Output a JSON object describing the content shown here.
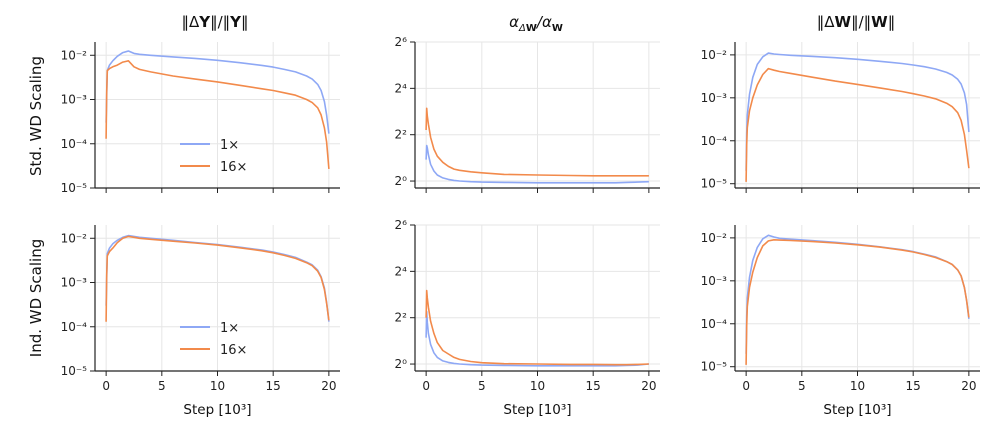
{
  "colors": {
    "blue": "#8EA8F5",
    "orange": "#F28A4B",
    "grid": "#e6e6e6",
    "axis": "#222222"
  },
  "chart_data": [
    {
      "type": "line",
      "row": "Std. WD Scaling",
      "title": "||ΔY||/||Y||",
      "yscale": "log10",
      "ylim_exp": [
        -5,
        -1.7
      ],
      "yticks_exp": [
        -5,
        -4,
        -3,
        -2
      ],
      "xlim": [
        -1,
        21
      ],
      "xticks": [
        0,
        5,
        10,
        15,
        20
      ],
      "xlabel": "",
      "legend": [
        "1×",
        "16×"
      ],
      "legend_loc": "lower-center",
      "x": [
        0,
        0.05,
        0.1,
        0.3,
        0.6,
        1,
        1.5,
        2,
        2.5,
        3,
        4,
        6,
        8,
        10,
        12,
        14,
        15,
        16,
        17,
        18,
        18.5,
        19,
        19.3,
        19.6,
        19.8,
        20
      ],
      "series": [
        {
          "name": "1×",
          "values": [
            0.0003,
            0.0012,
            0.0045,
            0.006,
            0.0075,
            0.0095,
            0.0115,
            0.0125,
            0.011,
            0.0105,
            0.01,
            0.0092,
            0.0085,
            0.0077,
            0.0068,
            0.0059,
            0.0054,
            0.0048,
            0.0042,
            0.0034,
            0.0029,
            0.0022,
            0.0016,
            0.0009,
            0.00045,
            0.00017
          ]
        },
        {
          "name": "16×",
          "values": [
            0.00013,
            0.0015,
            0.0045,
            0.005,
            0.0055,
            0.006,
            0.007,
            0.0075,
            0.0055,
            0.0048,
            0.0042,
            0.0034,
            0.0029,
            0.0025,
            0.0021,
            0.00175,
            0.0016,
            0.00142,
            0.00125,
            0.001,
            0.00085,
            0.00065,
            0.00045,
            0.00023,
            0.00011,
            2.7e-05
          ]
        }
      ]
    },
    {
      "type": "line",
      "row": "Std. WD Scaling",
      "title": "αΔW/αW",
      "yscale": "log2",
      "ylim_exp": [
        -0.3,
        6
      ],
      "yticks_exp": [
        0,
        2,
        4,
        6
      ],
      "xlim": [
        -1,
        21
      ],
      "xticks": [
        0,
        5,
        10,
        15,
        20
      ],
      "xlabel": "",
      "x": [
        0,
        0.05,
        0.1,
        0.2,
        0.4,
        0.7,
        1,
        1.5,
        2,
        2.5,
        3,
        4,
        5,
        7,
        10,
        13,
        15,
        17,
        18,
        19,
        20
      ],
      "series": [
        {
          "name": "1×",
          "values": [
            1.9,
            2.9,
            2.7,
            2.2,
            1.65,
            1.35,
            1.2,
            1.1,
            1.05,
            1.02,
            1.0,
            0.98,
            0.97,
            0.96,
            0.95,
            0.95,
            0.95,
            0.95,
            0.96,
            0.97,
            0.98
          ]
        },
        {
          "name": "16×",
          "values": [
            4.6,
            8.8,
            7.0,
            5.5,
            3.7,
            2.6,
            2.1,
            1.75,
            1.55,
            1.43,
            1.38,
            1.32,
            1.28,
            1.22,
            1.2,
            1.18,
            1.17,
            1.17,
            1.17,
            1.17,
            1.17
          ]
        }
      ]
    },
    {
      "type": "line",
      "row": "Std. WD Scaling",
      "title": "||ΔW||/||W||",
      "yscale": "log10",
      "ylim_exp": [
        -5.1,
        -1.7
      ],
      "yticks_exp": [
        -5,
        -4,
        -3,
        -2
      ],
      "xlim": [
        -1,
        21
      ],
      "xticks": [
        0,
        5,
        10,
        15,
        20
      ],
      "xlabel": "",
      "x": [
        0,
        0.05,
        0.1,
        0.3,
        0.6,
        1,
        1.5,
        2,
        2.5,
        3,
        4,
        6,
        8,
        10,
        12,
        14,
        15,
        16,
        17,
        18,
        18.5,
        19,
        19.3,
        19.6,
        19.8,
        20
      ],
      "series": [
        {
          "name": "1×",
          "values": [
            2e-05,
            0.00015,
            0.0004,
            0.0012,
            0.003,
            0.006,
            0.009,
            0.011,
            0.0105,
            0.0102,
            0.0098,
            0.0092,
            0.0086,
            0.0079,
            0.0071,
            0.0063,
            0.0058,
            0.0053,
            0.0047,
            0.0039,
            0.0034,
            0.0027,
            0.0021,
            0.0013,
            0.0007,
            0.00016
          ]
        },
        {
          "name": "16×",
          "values": [
            1.1e-05,
            8e-05,
            0.0002,
            0.0005,
            0.001,
            0.002,
            0.0035,
            0.0048,
            0.0044,
            0.0041,
            0.0037,
            0.003,
            0.00245,
            0.00205,
            0.0017,
            0.0014,
            0.00125,
            0.0011,
            0.00095,
            0.00075,
            0.00062,
            0.00045,
            0.0003,
            0.00014,
            6e-05,
            2.3e-05
          ]
        }
      ]
    },
    {
      "type": "line",
      "row": "Ind. WD Scaling",
      "title": "",
      "yscale": "log10",
      "ylim_exp": [
        -5,
        -1.7
      ],
      "yticks_exp": [
        -5,
        -4,
        -3,
        -2
      ],
      "xlim": [
        -1,
        21
      ],
      "xticks": [
        0,
        5,
        10,
        15,
        20
      ],
      "xlabel": "Step [10³]",
      "legend": [
        "1×",
        "16×"
      ],
      "legend_loc": "lower-center",
      "x": [
        0,
        0.05,
        0.1,
        0.3,
        0.6,
        1,
        1.5,
        2,
        2.5,
        3,
        4,
        6,
        8,
        10,
        12,
        14,
        15,
        16,
        17,
        18,
        18.5,
        19,
        19.3,
        19.6,
        19.8,
        20
      ],
      "series": [
        {
          "name": "1×",
          "values": [
            0.0003,
            0.0012,
            0.0045,
            0.006,
            0.0075,
            0.009,
            0.0105,
            0.0115,
            0.011,
            0.0105,
            0.01,
            0.009,
            0.008,
            0.0072,
            0.0063,
            0.0054,
            0.0049,
            0.0043,
            0.0037,
            0.0029,
            0.0025,
            0.0019,
            0.00135,
            0.00075,
            0.00036,
            0.00013
          ]
        },
        {
          "name": "16×",
          "values": [
            0.00013,
            0.0015,
            0.004,
            0.005,
            0.006,
            0.008,
            0.01,
            0.011,
            0.0105,
            0.01,
            0.0095,
            0.0086,
            0.0078,
            0.007,
            0.0061,
            0.0052,
            0.0047,
            0.0041,
            0.0035,
            0.0028,
            0.0024,
            0.0018,
            0.0013,
            0.0007,
            0.00034,
            0.00014
          ]
        }
      ]
    },
    {
      "type": "line",
      "row": "Ind. WD Scaling",
      "title": "",
      "yscale": "log2",
      "ylim_exp": [
        -0.3,
        6
      ],
      "yticks_exp": [
        0,
        2,
        4,
        6
      ],
      "xlim": [
        -1,
        21
      ],
      "xticks": [
        0,
        5,
        10,
        15,
        20
      ],
      "xlabel": "Step [10³]",
      "x": [
        0,
        0.05,
        0.1,
        0.2,
        0.4,
        0.7,
        1,
        1.5,
        2,
        2.5,
        3,
        4,
        5,
        7,
        10,
        13,
        15,
        17,
        18,
        19,
        20
      ],
      "series": [
        {
          "name": "1×",
          "values": [
            2.2,
            4.8,
            3.5,
            2.5,
            1.8,
            1.4,
            1.22,
            1.1,
            1.05,
            1.02,
            1.0,
            0.98,
            0.97,
            0.96,
            0.95,
            0.95,
            0.95,
            0.95,
            0.96,
            0.97,
            1.0
          ]
        },
        {
          "name": "16×",
          "values": [
            4.0,
            9.0,
            7.2,
            5.5,
            3.6,
            2.5,
            1.9,
            1.5,
            1.35,
            1.22,
            1.15,
            1.08,
            1.04,
            1.01,
            1.0,
            0.99,
            0.99,
            0.98,
            0.98,
            0.99,
            1.0
          ]
        }
      ]
    },
    {
      "type": "line",
      "row": "Ind. WD Scaling",
      "title": "",
      "yscale": "log10",
      "ylim_exp": [
        -5.1,
        -1.7
      ],
      "yticks_exp": [
        -5,
        -4,
        -3,
        -2
      ],
      "xlim": [
        -1,
        21
      ],
      "xticks": [
        0,
        5,
        10,
        15,
        20
      ],
      "xlabel": "Step [10³]",
      "x": [
        0,
        0.05,
        0.1,
        0.3,
        0.6,
        1,
        1.5,
        2,
        2.5,
        3,
        4,
        6,
        8,
        10,
        12,
        14,
        15,
        16,
        17,
        18,
        18.5,
        19,
        19.3,
        19.6,
        19.8,
        20
      ],
      "series": [
        {
          "name": "1×",
          "values": [
            2e-05,
            0.00015,
            0.0004,
            0.0012,
            0.003,
            0.006,
            0.0095,
            0.0115,
            0.0105,
            0.0098,
            0.0093,
            0.0086,
            0.0079,
            0.0071,
            0.0062,
            0.0053,
            0.0048,
            0.0042,
            0.0036,
            0.0028,
            0.0024,
            0.0018,
            0.0013,
            0.0007,
            0.00035,
            0.00013
          ]
        },
        {
          "name": "16×",
          "values": [
            1.1e-05,
            9e-05,
            0.00025,
            0.0007,
            0.0016,
            0.0035,
            0.0065,
            0.0085,
            0.009,
            0.0089,
            0.0087,
            0.0082,
            0.0076,
            0.0069,
            0.0061,
            0.0052,
            0.0047,
            0.0041,
            0.0035,
            0.0028,
            0.0024,
            0.0018,
            0.0013,
            0.0007,
            0.00035,
            0.00014
          ]
        }
      ]
    }
  ]
}
